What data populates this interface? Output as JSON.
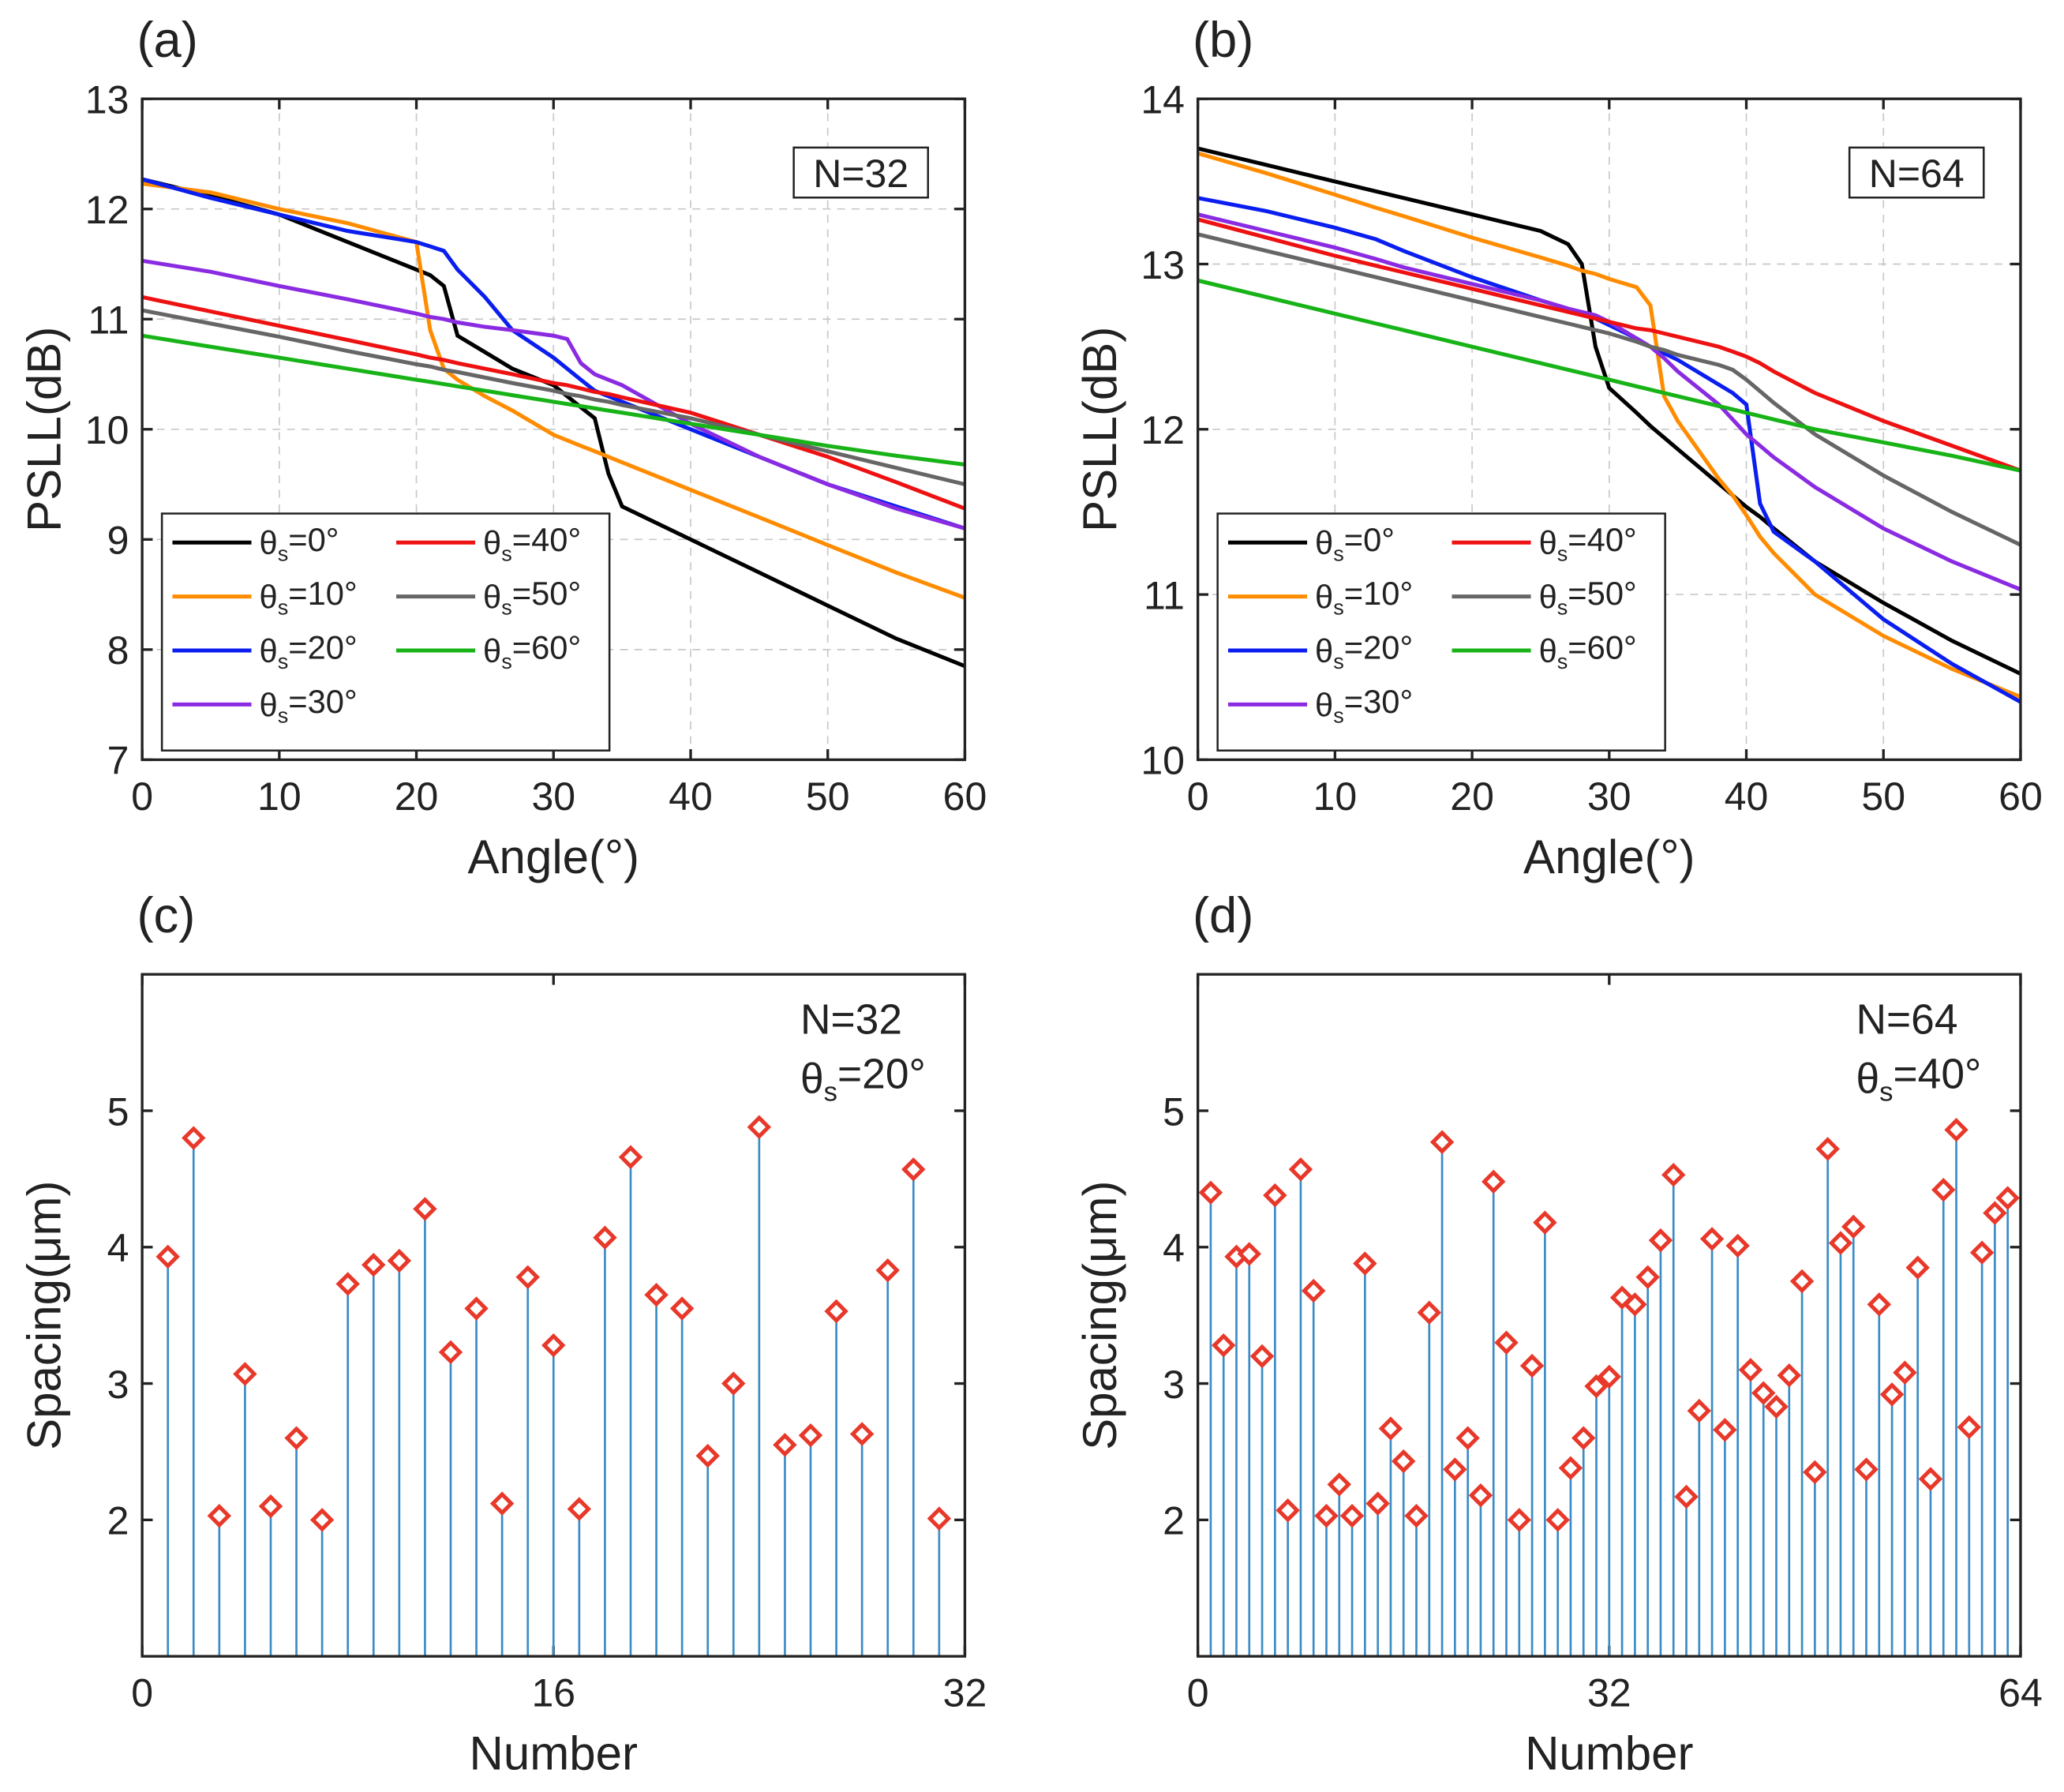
{
  "chart_data": [
    {
      "type": "line",
      "title": "(a)",
      "xlabel": "Angle(°)",
      "ylabel": "PSLL(dB)",
      "grid": true,
      "legend": "lower left",
      "annotation": [
        "N=32"
      ],
      "annotation_box": true,
      "xlim": [
        0,
        60
      ],
      "xticks": [
        0,
        10,
        20,
        30,
        40,
        50,
        60
      ],
      "ylim": [
        7,
        13
      ],
      "yticks": [
        7,
        8,
        9,
        10,
        11,
        12,
        13
      ],
      "x": [
        0,
        5,
        10,
        15,
        20,
        21,
        22,
        23,
        25,
        27,
        30,
        31,
        32,
        33,
        34,
        35,
        40,
        45,
        50,
        55,
        60
      ],
      "series": [
        {
          "name": "θs=0°",
          "color": "#000000",
          "values": [
            12.27,
            12.12,
            11.95,
            11.7,
            11.45,
            11.4,
            11.3,
            10.85,
            10.7,
            10.55,
            10.4,
            10.3,
            10.2,
            10.1,
            9.6,
            9.3,
            9.0,
            8.7,
            8.4,
            8.1,
            7.85
          ]
        },
        {
          "name": "θs=10°",
          "color": "#ff8c00",
          "values": [
            12.23,
            12.15,
            12.0,
            11.87,
            11.7,
            10.9,
            10.55,
            10.45,
            10.3,
            10.17,
            9.95,
            9.9,
            9.85,
            9.8,
            9.75,
            9.7,
            9.45,
            9.2,
            8.95,
            8.7,
            8.47
          ]
        },
        {
          "name": "θs=20°",
          "color": "#0a1ef0",
          "values": [
            12.27,
            12.1,
            11.95,
            11.8,
            11.7,
            11.66,
            11.62,
            11.45,
            11.2,
            10.9,
            10.65,
            10.55,
            10.45,
            10.35,
            10.3,
            10.25,
            10.0,
            9.75,
            9.5,
            9.3,
            9.1
          ]
        },
        {
          "name": "θs=30°",
          "color": "#8a2be2",
          "values": [
            11.53,
            11.43,
            11.3,
            11.18,
            11.05,
            11.02,
            11.0,
            10.97,
            10.93,
            10.9,
            10.85,
            10.82,
            10.6,
            10.5,
            10.45,
            10.4,
            10.05,
            9.75,
            9.5,
            9.28,
            9.1
          ]
        },
        {
          "name": "θs=40°",
          "color": "#ee1111",
          "values": [
            11.2,
            11.07,
            10.94,
            10.81,
            10.68,
            10.65,
            10.63,
            10.6,
            10.55,
            10.5,
            10.42,
            10.4,
            10.37,
            10.34,
            10.32,
            10.29,
            10.15,
            9.95,
            9.75,
            9.52,
            9.28
          ]
        },
        {
          "name": "θs=50°",
          "color": "#666666",
          "values": [
            11.08,
            10.96,
            10.84,
            10.71,
            10.59,
            10.57,
            10.54,
            10.52,
            10.47,
            10.42,
            10.35,
            10.32,
            10.3,
            10.27,
            10.25,
            10.22,
            10.1,
            9.95,
            9.8,
            9.65,
            9.5
          ]
        },
        {
          "name": "θs=60°",
          "color": "#17b317",
          "values": [
            10.85,
            10.75,
            10.65,
            10.55,
            10.45,
            10.43,
            10.41,
            10.39,
            10.35,
            10.31,
            10.25,
            10.23,
            10.21,
            10.19,
            10.17,
            10.15,
            10.05,
            9.95,
            9.85,
            9.76,
            9.68
          ]
        }
      ]
    },
    {
      "type": "line",
      "title": "(b)",
      "xlabel": "Angle(°)",
      "ylabel": "PSLL(dB)",
      "grid": true,
      "legend": "lower left",
      "annotation": [
        "N=64"
      ],
      "annotation_box": true,
      "xlim": [
        0,
        60
      ],
      "xticks": [
        0,
        10,
        20,
        30,
        40,
        50,
        60
      ],
      "ylim": [
        10,
        14
      ],
      "yticks": [
        10,
        11,
        12,
        13,
        14
      ],
      "x": [
        0,
        5,
        10,
        13,
        15,
        20,
        25,
        27,
        28,
        29,
        30,
        32,
        33,
        34,
        35,
        38,
        39,
        40,
        41,
        42,
        45,
        50,
        55,
        60
      ],
      "series": [
        {
          "name": "θs=0°",
          "color": "#000000",
          "values": [
            13.7,
            13.6,
            13.5,
            13.44,
            13.4,
            13.3,
            13.2,
            13.12,
            13.0,
            12.5,
            12.25,
            12.1,
            12.02,
            11.95,
            11.88,
            11.67,
            11.6,
            11.53,
            11.47,
            11.4,
            11.2,
            10.95,
            10.72,
            10.52
          ]
        },
        {
          "name": "θs=10°",
          "color": "#ff8c00",
          "values": [
            13.67,
            13.55,
            13.42,
            13.34,
            13.29,
            13.16,
            13.04,
            12.99,
            12.96,
            12.94,
            12.91,
            12.86,
            12.75,
            12.2,
            12.05,
            11.7,
            11.6,
            11.48,
            11.35,
            11.25,
            11.0,
            10.75,
            10.55,
            10.38
          ]
        },
        {
          "name": "θs=20°",
          "color": "#0a1ef0",
          "values": [
            13.4,
            13.32,
            13.22,
            13.15,
            13.08,
            12.92,
            12.78,
            12.73,
            12.7,
            12.67,
            12.63,
            12.55,
            12.5,
            12.46,
            12.42,
            12.27,
            12.22,
            12.15,
            11.55,
            11.38,
            11.2,
            10.85,
            10.58,
            10.35
          ]
        },
        {
          "name": "θs=30°",
          "color": "#8a2be2",
          "values": [
            13.3,
            13.2,
            13.1,
            13.03,
            12.98,
            12.88,
            12.78,
            12.73,
            12.71,
            12.69,
            12.65,
            12.55,
            12.5,
            12.43,
            12.35,
            12.15,
            12.06,
            11.97,
            11.9,
            11.83,
            11.65,
            11.4,
            11.2,
            11.03
          ]
        },
        {
          "name": "θs=40°",
          "color": "#ee1111",
          "values": [
            13.27,
            13.16,
            13.05,
            12.99,
            12.95,
            12.85,
            12.75,
            12.71,
            12.69,
            12.67,
            12.65,
            12.61,
            12.6,
            12.58,
            12.56,
            12.5,
            12.47,
            12.44,
            12.4,
            12.35,
            12.22,
            12.05,
            11.9,
            11.75
          ]
        },
        {
          "name": "θs=50°",
          "color": "#666666",
          "values": [
            13.18,
            13.08,
            12.98,
            12.92,
            12.88,
            12.78,
            12.68,
            12.64,
            12.62,
            12.6,
            12.58,
            12.53,
            12.5,
            12.48,
            12.45,
            12.39,
            12.36,
            12.3,
            12.23,
            12.16,
            11.97,
            11.72,
            11.5,
            11.3
          ]
        },
        {
          "name": "θs=60°",
          "color": "#17b317",
          "values": [
            12.9,
            12.8,
            12.7,
            12.64,
            12.6,
            12.5,
            12.4,
            12.36,
            12.34,
            12.32,
            12.3,
            12.26,
            12.24,
            12.22,
            12.2,
            12.14,
            12.12,
            12.1,
            12.08,
            12.06,
            12.0,
            11.92,
            11.84,
            11.75
          ]
        }
      ]
    },
    {
      "type": "stem",
      "title": "(c)",
      "xlabel": "Number",
      "ylabel": "Spacing(μm)",
      "grid": false,
      "annotation": [
        "N=32",
        "θs=20°"
      ],
      "annotation_box": false,
      "xlim": [
        0,
        32
      ],
      "xticks": [
        0,
        16,
        32
      ],
      "ylim": [
        1,
        6
      ],
      "yticks": [
        2,
        3,
        4,
        5
      ],
      "stem_color": "#3a8cc6",
      "marker_color": "#e8382a",
      "x": [
        1,
        2,
        3,
        4,
        5,
        6,
        7,
        8,
        9,
        10,
        11,
        12,
        13,
        14,
        15,
        16,
        17,
        18,
        19,
        20,
        21,
        22,
        23,
        24,
        25,
        26,
        27,
        28,
        29,
        30,
        31
      ],
      "values": [
        3.93,
        4.8,
        2.03,
        3.07,
        2.1,
        2.6,
        2.0,
        3.73,
        3.87,
        3.9,
        4.28,
        3.23,
        3.55,
        2.12,
        3.78,
        3.28,
        2.08,
        4.07,
        4.66,
        3.65,
        3.55,
        2.47,
        3.0,
        4.88,
        2.55,
        2.62,
        3.53,
        2.63,
        3.83,
        4.57,
        2.01
      ]
    },
    {
      "type": "stem",
      "title": "(d)",
      "xlabel": "Number",
      "ylabel": "Spacing(μm)",
      "grid": false,
      "annotation": [
        "N=64",
        "θs=40°"
      ],
      "annotation_box": false,
      "xlim": [
        0,
        64
      ],
      "xticks": [
        0,
        32,
        64
      ],
      "ylim": [
        1,
        6
      ],
      "yticks": [
        2,
        3,
        4,
        5
      ],
      "stem_color": "#3a8cc6",
      "marker_color": "#e8382a",
      "x": [
        1,
        2,
        3,
        4,
        5,
        6,
        7,
        8,
        9,
        10,
        11,
        12,
        13,
        14,
        15,
        16,
        17,
        18,
        19,
        20,
        21,
        22,
        23,
        24,
        25,
        26,
        27,
        28,
        29,
        30,
        31,
        32,
        33,
        34,
        35,
        36,
        37,
        38,
        39,
        40,
        41,
        42,
        43,
        44,
        45,
        46,
        47,
        48,
        49,
        50,
        51,
        52,
        53,
        54,
        55,
        56,
        57,
        58,
        59,
        60,
        61,
        62,
        63
      ],
      "values": [
        4.4,
        3.28,
        3.93,
        3.95,
        3.2,
        4.38,
        2.07,
        4.57,
        3.68,
        2.03,
        2.26,
        2.03,
        3.88,
        2.12,
        2.67,
        2.43,
        2.03,
        3.52,
        4.77,
        2.37,
        2.6,
        2.18,
        4.48,
        3.3,
        2.0,
        3.13,
        4.18,
        2.0,
        2.38,
        2.6,
        2.98,
        3.05,
        3.63,
        3.58,
        3.78,
        4.05,
        4.53,
        2.17,
        2.8,
        4.06,
        2.66,
        4.01,
        3.1,
        2.93,
        2.83,
        3.06,
        3.75,
        2.35,
        4.72,
        4.03,
        4.15,
        2.37,
        3.58,
        2.92,
        3.08,
        3.85,
        2.3,
        4.42,
        4.86,
        2.68,
        3.96,
        4.25,
        4.36
      ]
    }
  ]
}
